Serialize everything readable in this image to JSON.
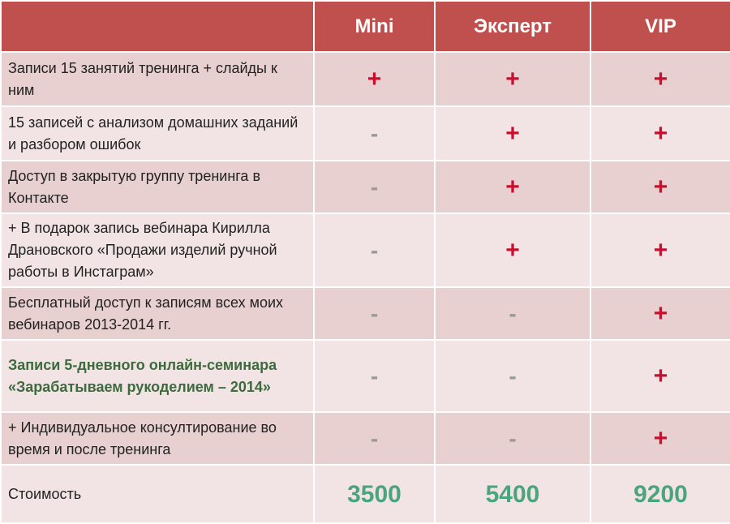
{
  "headers": [
    "",
    "Mini",
    "Эксперт",
    "VIP"
  ],
  "rows": [
    {
      "label": "Записи 15 занятий тренинга + слайды к ним",
      "marks": [
        "+",
        "+",
        "+"
      ]
    },
    {
      "label": "15 записей с анализом домашних заданий и разбором ошибок",
      "marks": [
        "-",
        "+",
        "+"
      ]
    },
    {
      "label": "Доступ в закрытую группу тренинга в Контакте",
      "marks": [
        "-",
        "+",
        "+"
      ]
    },
    {
      "label": "+ В подарок запись вебинара Кирилла Драновского «Продажи изделий ручной работы в Инстаграм»",
      "marks": [
        "-",
        "+",
        "+"
      ]
    },
    {
      "label": "Бесплатный доступ к записям всех моих вебинаров 2013-2014 гг.",
      "marks": [
        "-",
        "-",
        "+"
      ]
    },
    {
      "label": "Записи 5-дневного онлайн-семинара «Зарабатываем рукоделием – 2014»",
      "marks": [
        "-",
        "-",
        "+"
      ],
      "highlight": true
    },
    {
      "label": "+ Индивидуальное консултирование во время и после тренинга",
      "marks": [
        "-",
        "-",
        "+"
      ]
    }
  ],
  "price": {
    "label": "Стоимость",
    "values": [
      "3500",
      "5400",
      "9200"
    ]
  },
  "colors": {
    "header": "#c0504d",
    "plus": "#c8102e",
    "minus": "#999999",
    "price": "#4aa57d",
    "highlight_text": "#3d6b3d"
  }
}
